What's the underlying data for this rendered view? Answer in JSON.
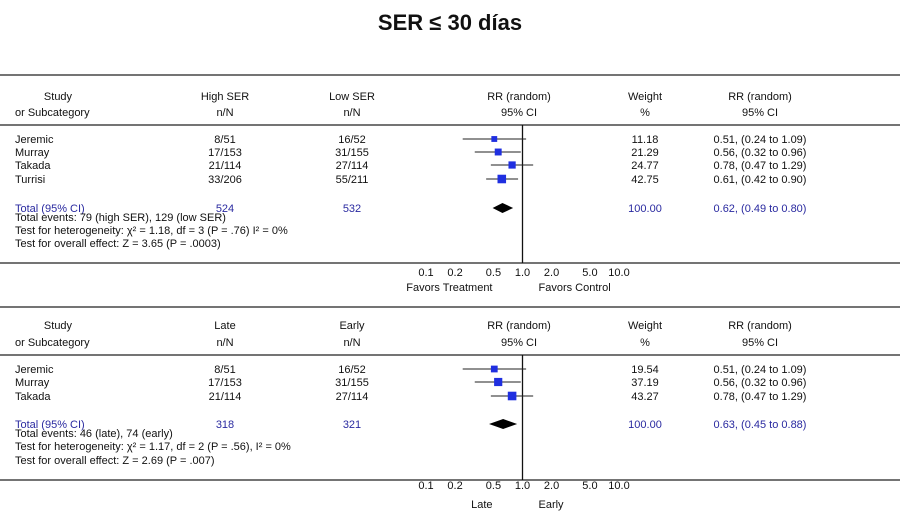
{
  "title": "SER ≤ 30 días",
  "chart_data": [
    {
      "type": "forest",
      "headers": {
        "study": "Study",
        "subcategory": "or Subcategory",
        "group1": "High SER",
        "group1_sub": "n/N",
        "group2": "Low SER",
        "group2_sub": "n/N",
        "rr": "RR (random)",
        "rr_sub": "95% CI",
        "weight": "Weight",
        "weight_sub": "%",
        "rr_col": "RR (random)",
        "rr_col_sub": "95% CI"
      },
      "studies": [
        {
          "name": "Jeremic",
          "g1": "8/51",
          "g2": "16/52",
          "weight": "11.18",
          "ci_text": "0.51, (0.24 to 1.09)",
          "rr": 0.51,
          "lo": 0.24,
          "hi": 1.09,
          "w": 11.18
        },
        {
          "name": "Murray",
          "g1": "17/153",
          "g2": "31/155",
          "weight": "21.29",
          "ci_text": "0.56, (0.32 to 0.96)",
          "rr": 0.56,
          "lo": 0.32,
          "hi": 0.96,
          "w": 21.29
        },
        {
          "name": "Takada",
          "g1": "21/114",
          "g2": "27/114",
          "weight": "24.77",
          "ci_text": "0.78, (0.47 to 1.29)",
          "rr": 0.78,
          "lo": 0.47,
          "hi": 1.29,
          "w": 24.77
        },
        {
          "name": "Turrisi",
          "g1": "33/206",
          "g2": "55/211",
          "weight": "42.75",
          "ci_text": "0.61, (0.42 to 0.90)",
          "rr": 0.61,
          "lo": 0.42,
          "hi": 0.9,
          "w": 42.75
        }
      ],
      "total": {
        "label": "Total (95% CI)",
        "g1": "524",
        "g2": "532",
        "weight": "100.00",
        "ci_text": "0.62, (0.49 to 0.80)",
        "rr": 0.62,
        "lo": 0.49,
        "hi": 0.8
      },
      "notes": [
        "Total events: 79 (high SER), 129 (low SER)",
        "Test for heterogeneity: χ² = 1.18, df = 3 (P = .76) I² = 0%",
        "Test for overall effect: Z = 3.65 (P = .0003)"
      ],
      "x_scale": "log",
      "xlim": [
        0.1,
        10
      ],
      "ticks": [
        0.1,
        0.2,
        0.5,
        1,
        2,
        5,
        10
      ],
      "tick_labels": [
        "0.1",
        "0.2",
        "0.5",
        "1.0",
        "2.0",
        "5.0",
        "10.0"
      ],
      "favors_left": "Favors Treatment",
      "favors_right": "Favors Control",
      "marker_color": "#1f2fe0",
      "text_color_total": "#2a2aa0"
    },
    {
      "type": "forest",
      "headers": {
        "study": "Study",
        "subcategory": "or Subcategory",
        "group1": "Late",
        "group1_sub": "n/N",
        "group2": "Early",
        "group2_sub": "n/N",
        "rr": "RR (random)",
        "rr_sub": "95% CI",
        "weight": "Weight",
        "weight_sub": "%",
        "rr_col": "RR (random)",
        "rr_col_sub": "95% CI"
      },
      "studies": [
        {
          "name": "Jeremic",
          "g1": "8/51",
          "g2": "16/52",
          "weight": "19.54",
          "ci_text": "0.51, (0.24 to 1.09)",
          "rr": 0.51,
          "lo": 0.24,
          "hi": 1.09,
          "w": 19.54
        },
        {
          "name": "Murray",
          "g1": "17/153",
          "g2": "31/155",
          "weight": "37.19",
          "ci_text": "0.56, (0.32 to 0.96)",
          "rr": 0.56,
          "lo": 0.32,
          "hi": 0.96,
          "w": 37.19
        },
        {
          "name": "Takada",
          "g1": "21/114",
          "g2": "27/114",
          "weight": "43.27",
          "ci_text": "0.78, (0.47 to 1.29)",
          "rr": 0.78,
          "lo": 0.47,
          "hi": 1.29,
          "w": 43.27
        }
      ],
      "total": {
        "label": "Total (95% CI)",
        "g1": "318",
        "g2": "321",
        "weight": "100.00",
        "ci_text": "0.63, (0.45 to 0.88)",
        "rr": 0.63,
        "lo": 0.45,
        "hi": 0.88
      },
      "notes": [
        "Total events: 46 (late), 74 (early)",
        "Test for heterogeneity: χ² = 1.17, df = 2 (P = .56), I² = 0%",
        "Test for overall effect: Z = 2.69 (P = .007)"
      ],
      "x_scale": "log",
      "xlim": [
        0.1,
        10
      ],
      "ticks": [
        0.1,
        0.2,
        0.5,
        1,
        2,
        5,
        10
      ],
      "tick_labels": [
        "0.1",
        "0.2",
        "0.5",
        "1.0",
        "2.0",
        "5.0",
        "10.0"
      ],
      "favors_left": "Late",
      "favors_right": "Early",
      "marker_color": "#1f2fe0",
      "text_color_total": "#2a2aa0"
    }
  ]
}
